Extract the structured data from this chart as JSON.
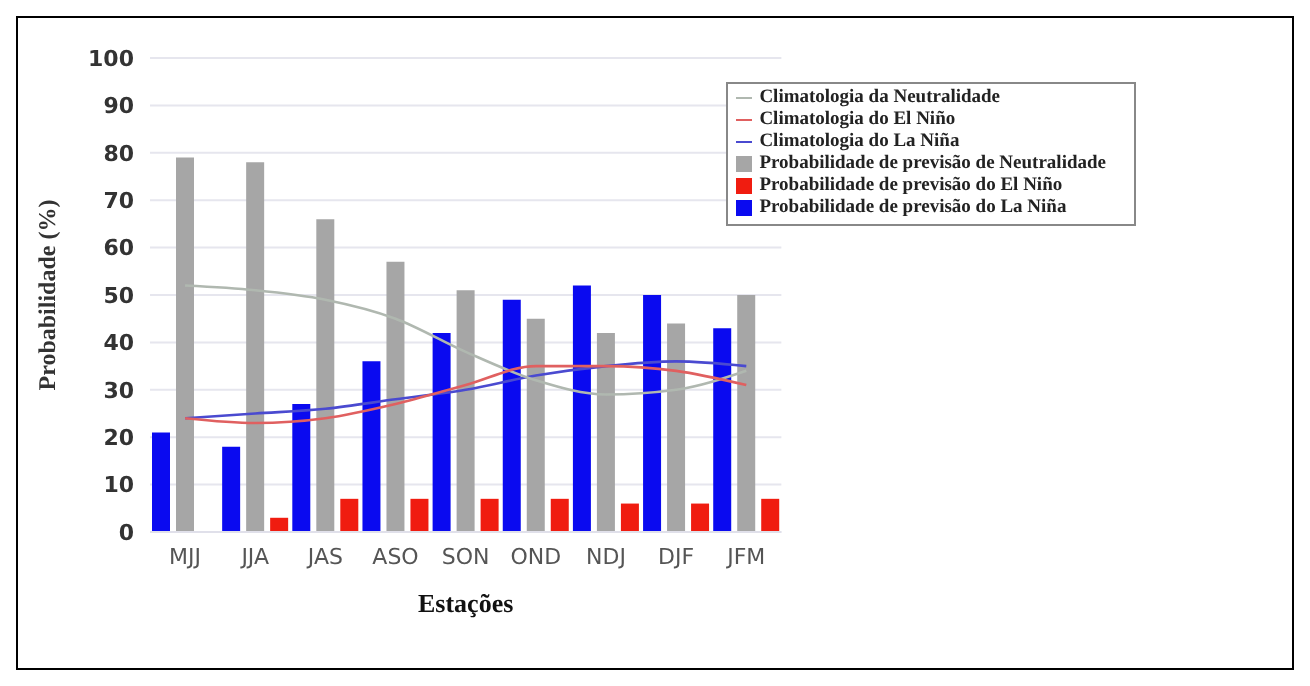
{
  "chart_data": {
    "type": "bar",
    "xlabel": "Estações",
    "ylabel": "Probabilidade (%)",
    "categories": [
      "MJJ",
      "JJA",
      "JAS",
      "ASO",
      "SON",
      "OND",
      "NDJ",
      "DJF",
      "JFM"
    ],
    "series": [
      {
        "name": "Probabilidade de previsão do La Niña",
        "color": "#0a0af0",
        "values": [
          21,
          18,
          27,
          36,
          42,
          49,
          52,
          50,
          43
        ]
      },
      {
        "name": "Probabilidade de previsão de Neutralidade",
        "color": "#a6a6a6",
        "values": [
          79,
          78,
          66,
          57,
          51,
          45,
          42,
          44,
          50
        ]
      },
      {
        "name": "Probabilidade de previsão do El Niño",
        "color": "#f01c10",
        "values": [
          0,
          3,
          7,
          7,
          7,
          7,
          6,
          6,
          7
        ]
      },
      {
        "name": "Climatologia do La Niña",
        "type": "line",
        "color": "#4a4ad0",
        "values": [
          24,
          25,
          26,
          28,
          30,
          33,
          35,
          36,
          35
        ]
      },
      {
        "name": "Climatologia da Neutralidade",
        "type": "line",
        "color": "#b0b8b0",
        "values": [
          52,
          51,
          49,
          45,
          38,
          32,
          29,
          30,
          34
        ]
      },
      {
        "name": "Climatologia do El Niño",
        "type": "line",
        "color": "#e06060",
        "values": [
          24,
          23,
          24,
          27,
          31,
          35,
          35,
          34,
          31
        ]
      }
    ],
    "ylim": [
      0,
      100
    ],
    "yticks": [
      0,
      10,
      20,
      30,
      40,
      50,
      60,
      70,
      80,
      90,
      100
    ],
    "grid": "y",
    "legend": "top right",
    "marker": "none"
  }
}
